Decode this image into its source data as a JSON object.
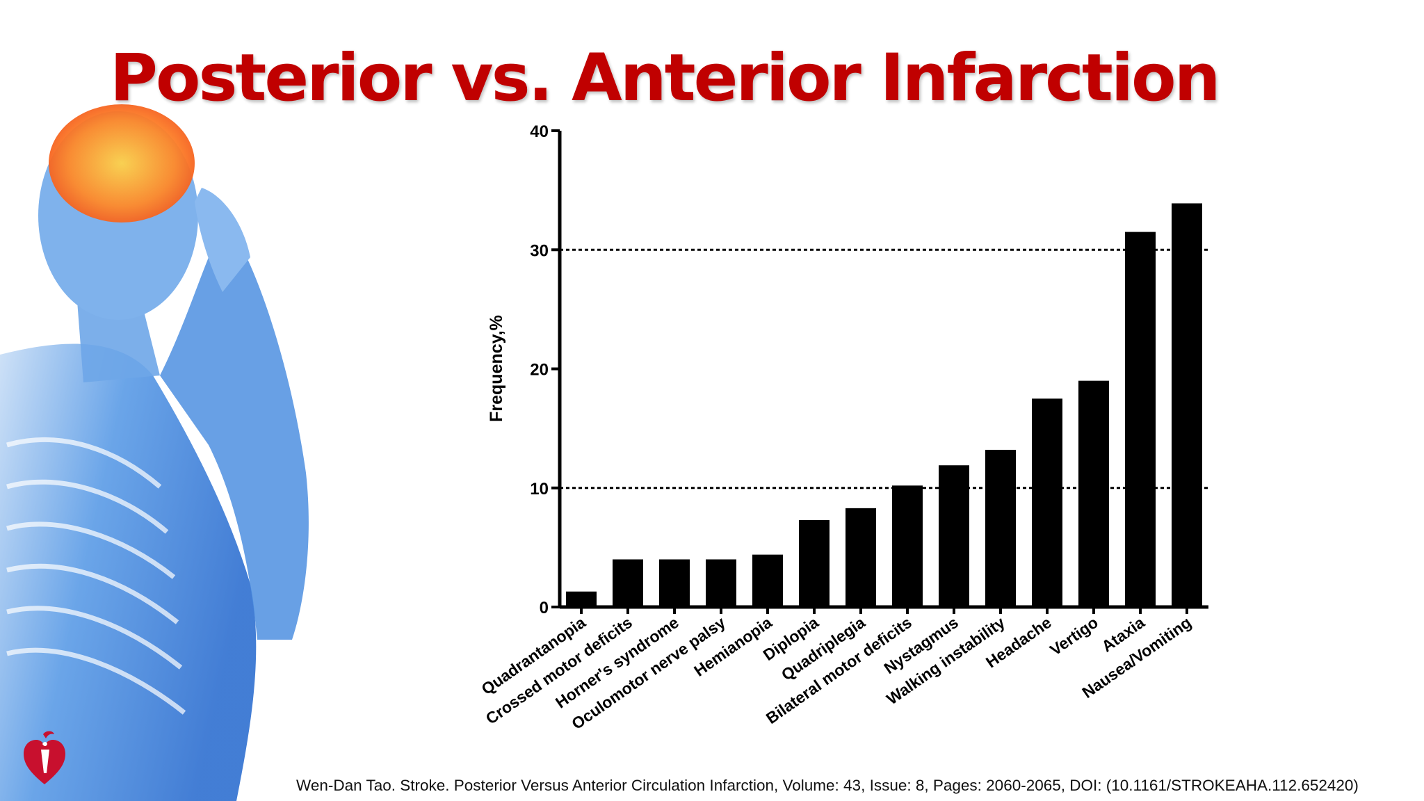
{
  "slide": {
    "title": "Posterior vs. Anterior Infarction",
    "citation": "Wen-Dan Tao. Stroke. Posterior Versus Anterior Circulation Infarction, Volume: 43, Issue: 8, Pages: 2060-2065, DOI: (10.1161/STROKEAHA.112.652420)",
    "title_color": "#c00000"
  },
  "chart_data": {
    "type": "bar",
    "title": "",
    "xlabel": "",
    "ylabel": "Frequency,%",
    "ylim": [
      0,
      40
    ],
    "yticks": [
      0,
      10,
      20,
      30,
      40
    ],
    "reference_lines": [
      10,
      30
    ],
    "grid": false,
    "bar_color": "#000000",
    "categories": [
      "Quadrantanopia",
      "Crossed motor deficits",
      "Horner's syndrome",
      "Oculomotor nerve palsy",
      "Hemianopia",
      "Diplopia",
      "Quadriplegia",
      "Bilateral motor deficits",
      "Nystagmus",
      "Walking instability",
      "Headache",
      "Vertigo",
      "Ataxia",
      "Nausea/Vomiting"
    ],
    "values": [
      1.3,
      4.0,
      4.0,
      4.0,
      4.4,
      7.3,
      8.3,
      10.2,
      11.9,
      13.2,
      17.5,
      19.0,
      31.5,
      33.9
    ]
  }
}
